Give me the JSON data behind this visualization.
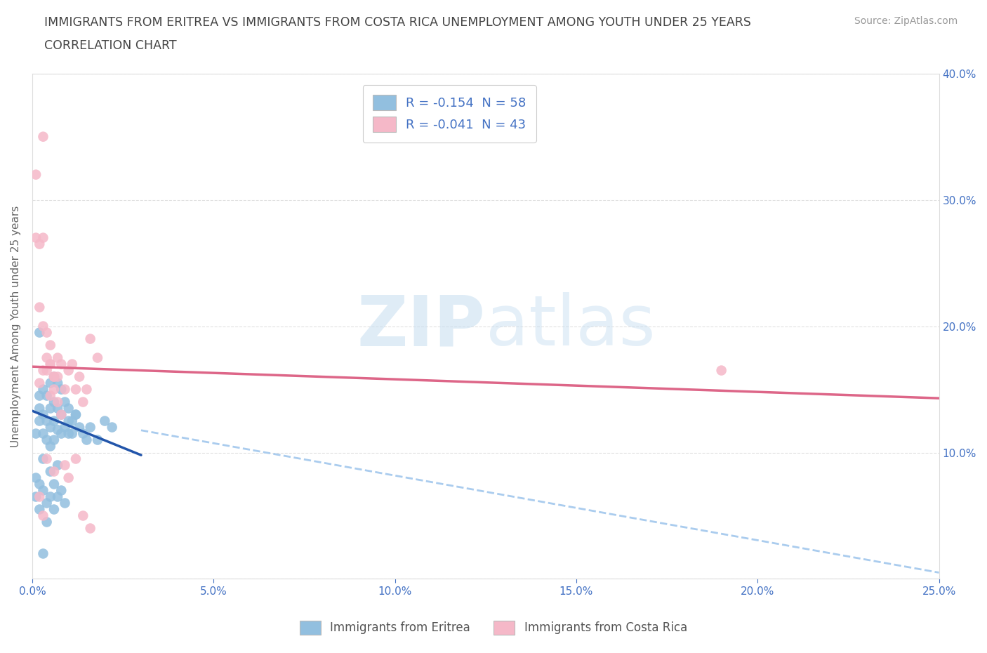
{
  "title_line1": "IMMIGRANTS FROM ERITREA VS IMMIGRANTS FROM COSTA RICA UNEMPLOYMENT AMONG YOUTH UNDER 25 YEARS",
  "title_line2": "CORRELATION CHART",
  "source": "Source: ZipAtlas.com",
  "ylabel": "Unemployment Among Youth under 25 years",
  "xlim": [
    0.0,
    0.25
  ],
  "ylim": [
    0.0,
    0.4
  ],
  "xticks": [
    0.0,
    0.05,
    0.1,
    0.15,
    0.2,
    0.25
  ],
  "yticks": [
    0.0,
    0.1,
    0.2,
    0.3,
    0.4
  ],
  "xticklabels": [
    "0.0%",
    "5.0%",
    "10.0%",
    "15.0%",
    "20.0%",
    "25.0%"
  ],
  "right_yticklabels": [
    "",
    "10.0%",
    "20.0%",
    "30.0%",
    "40.0%"
  ],
  "grid_color": "#cccccc",
  "watermark_zip": "ZIP",
  "watermark_atlas": "atlas",
  "legend_r1": "R = -0.154  N = 58",
  "legend_r2": "R = -0.041  N = 43",
  "legend_label1": "Immigrants from Eritrea",
  "legend_label2": "Immigrants from Costa Rica",
  "blue_color": "#92bfdf",
  "pink_color": "#f5b8c8",
  "blue_line_color": "#2255aa",
  "pink_line_color": "#dd6688",
  "blue_dashed_color": "#aaccee",
  "axis_tick_color": "#4472c4",
  "blue_solid_xend": 0.03,
  "blue_line_start_y": 0.133,
  "blue_line_end_solid_y": 0.098,
  "blue_line_end_dash_y": 0.005,
  "pink_line_start_y": 0.168,
  "pink_line_end_y": 0.143,
  "eritrea_x": [
    0.001,
    0.002,
    0.002,
    0.002,
    0.003,
    0.003,
    0.003,
    0.004,
    0.004,
    0.004,
    0.005,
    0.005,
    0.005,
    0.005,
    0.006,
    0.006,
    0.006,
    0.006,
    0.007,
    0.007,
    0.007,
    0.008,
    0.008,
    0.008,
    0.009,
    0.009,
    0.01,
    0.01,
    0.011,
    0.012,
    0.001,
    0.001,
    0.002,
    0.002,
    0.003,
    0.003,
    0.004,
    0.004,
    0.005,
    0.005,
    0.006,
    0.006,
    0.007,
    0.007,
    0.008,
    0.009,
    0.01,
    0.011,
    0.012,
    0.013,
    0.014,
    0.015,
    0.016,
    0.018,
    0.02,
    0.022,
    0.002,
    0.003
  ],
  "eritrea_y": [
    0.115,
    0.145,
    0.125,
    0.135,
    0.15,
    0.13,
    0.115,
    0.145,
    0.125,
    0.11,
    0.155,
    0.135,
    0.12,
    0.105,
    0.16,
    0.14,
    0.125,
    0.11,
    0.155,
    0.135,
    0.118,
    0.15,
    0.13,
    0.115,
    0.14,
    0.12,
    0.135,
    0.115,
    0.125,
    0.13,
    0.08,
    0.065,
    0.075,
    0.055,
    0.095,
    0.07,
    0.06,
    0.045,
    0.085,
    0.065,
    0.075,
    0.055,
    0.09,
    0.065,
    0.07,
    0.06,
    0.125,
    0.115,
    0.13,
    0.12,
    0.115,
    0.11,
    0.12,
    0.11,
    0.125,
    0.12,
    0.195,
    0.02
  ],
  "costa_rica_x": [
    0.001,
    0.001,
    0.002,
    0.002,
    0.003,
    0.003,
    0.004,
    0.004,
    0.005,
    0.005,
    0.006,
    0.006,
    0.007,
    0.007,
    0.008,
    0.009,
    0.01,
    0.011,
    0.012,
    0.013,
    0.014,
    0.015,
    0.016,
    0.018,
    0.003,
    0.004,
    0.005,
    0.006,
    0.007,
    0.008,
    0.002,
    0.003,
    0.004,
    0.005,
    0.006,
    0.009,
    0.01,
    0.012,
    0.014,
    0.016,
    0.002,
    0.003,
    0.19
  ],
  "costa_rica_y": [
    0.32,
    0.27,
    0.265,
    0.215,
    0.35,
    0.27,
    0.165,
    0.175,
    0.17,
    0.185,
    0.16,
    0.15,
    0.175,
    0.16,
    0.17,
    0.15,
    0.165,
    0.17,
    0.15,
    0.16,
    0.14,
    0.15,
    0.19,
    0.175,
    0.2,
    0.195,
    0.17,
    0.16,
    0.14,
    0.13,
    0.155,
    0.165,
    0.095,
    0.145,
    0.085,
    0.09,
    0.08,
    0.095,
    0.05,
    0.04,
    0.065,
    0.05,
    0.165
  ]
}
